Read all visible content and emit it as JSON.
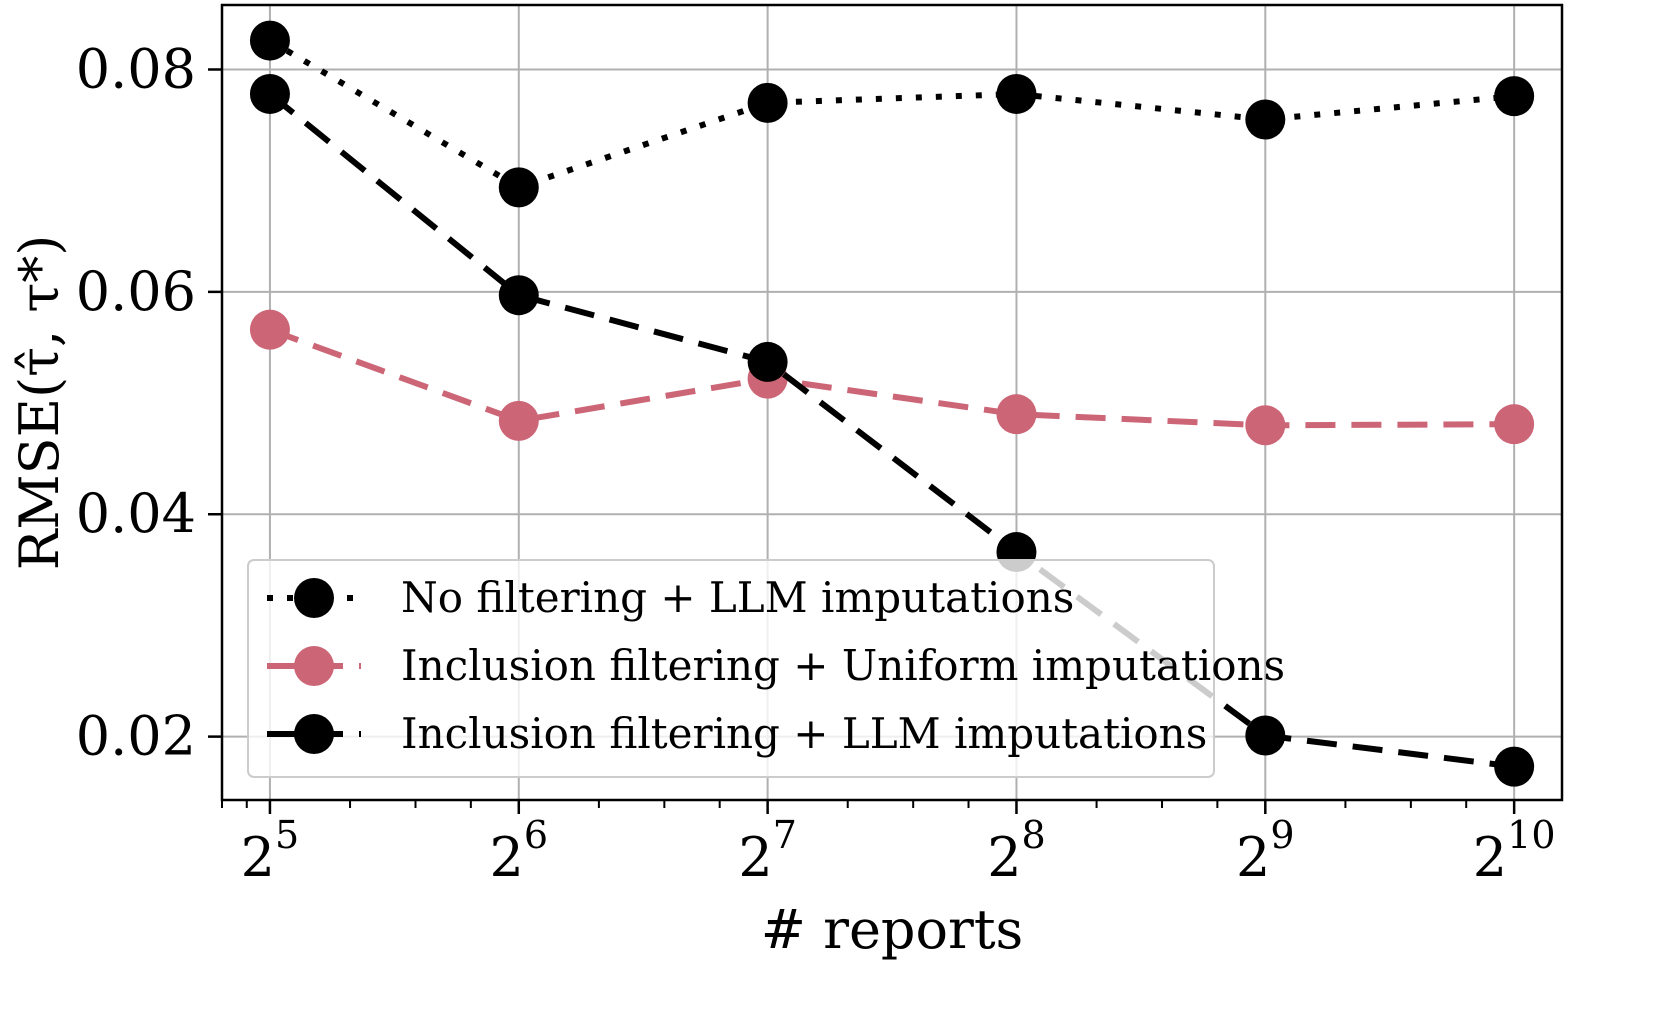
{
  "chart_data": {
    "type": "line",
    "xlabel": "# reports",
    "ylabel": "RMSE(τ̂, τ*)",
    "x_scale": "log2",
    "x": [
      32,
      64,
      128,
      256,
      512,
      1024
    ],
    "x_tick_labels": [
      {
        "base": "2",
        "exp": "5"
      },
      {
        "base": "2",
        "exp": "6"
      },
      {
        "base": "2",
        "exp": "7"
      },
      {
        "base": "2",
        "exp": "8"
      },
      {
        "base": "2",
        "exp": "9"
      },
      {
        "base": "2",
        "exp": "10"
      }
    ],
    "y_ticks": [
      0.02,
      0.04,
      0.06,
      0.08
    ],
    "y_tick_labels": [
      "0.02",
      "0.04",
      "0.06",
      "0.08"
    ],
    "xlim": [
      28,
      1170
    ],
    "ylim": [
      0.0143,
      0.0858
    ],
    "grid": true,
    "legend_position": "lower-left",
    "series": [
      {
        "name": "No filtering + LLM imputations",
        "values": [
          0.0826,
          0.0694,
          0.077,
          0.0778,
          0.0755,
          0.0776
        ],
        "color": "#000000",
        "linestyle": "dotted"
      },
      {
        "name": "Inclusion filtering + Uniform imputations",
        "values": [
          0.0566,
          0.0484,
          0.0522,
          0.049,
          0.048,
          0.0481
        ],
        "color": "#cc6677",
        "linestyle": "dashed"
      },
      {
        "name": "Inclusion filtering + LLM imputations",
        "values": [
          0.0778,
          0.0597,
          0.0537,
          0.0366,
          0.0201,
          0.0173
        ],
        "color": "#000000",
        "linestyle": "dashed"
      }
    ]
  }
}
